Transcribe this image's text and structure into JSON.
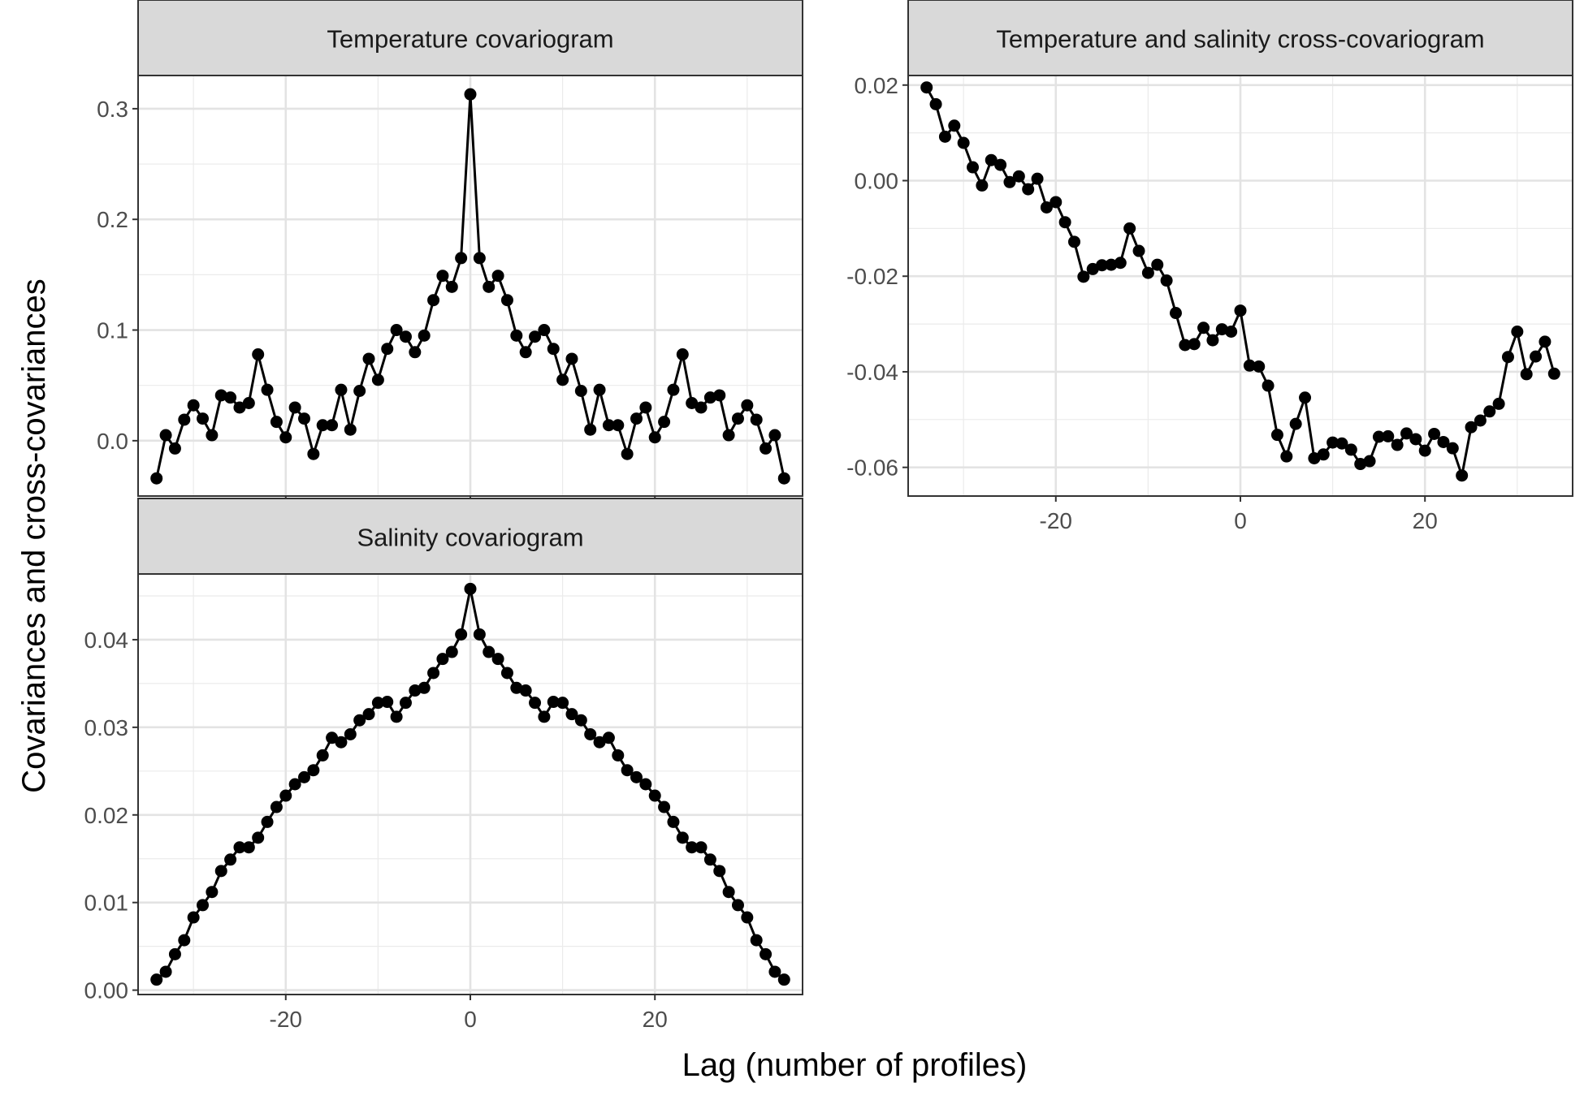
{
  "figure": {
    "xlabel": "Lag (number of profiles)",
    "ylabel": "Covariances and cross-covariances"
  },
  "chart_data": [
    {
      "type": "line",
      "title": "Temperature covariogram",
      "xlabel": "Lag (number of profiles)",
      "ylabel": "Covariances and cross-covariances",
      "xlim": [
        -36,
        36
      ],
      "ylim": [
        -0.05,
        0.33
      ],
      "xticks": [
        -20,
        0,
        20
      ],
      "xtick_labels": [],
      "yticks": [
        0.0,
        0.1,
        0.2,
        0.3
      ],
      "ytick_labels": [
        "0.0",
        "0.1",
        "0.2",
        "0.3"
      ],
      "grid": true,
      "markers": "points",
      "series": [
        {
          "x": [
            -34,
            -33,
            -32,
            -31,
            -30,
            -29,
            -28,
            -27,
            -26,
            -25,
            -24,
            -23,
            -22,
            -21,
            -20,
            -19,
            -18,
            -17,
            -16,
            -15,
            -14,
            -13,
            -12,
            -11,
            -10,
            -9,
            -8,
            -7,
            -6,
            -5,
            -4,
            -3,
            -2,
            -1,
            0,
            1,
            2,
            3,
            4,
            5,
            6,
            7,
            8,
            9,
            10,
            11,
            12,
            13,
            14,
            15,
            16,
            17,
            18,
            19,
            20,
            21,
            22,
            23,
            24,
            25,
            26,
            27,
            28,
            29,
            30,
            31,
            32,
            33,
            34
          ],
          "y": [
            -0.034,
            0.005,
            -0.007,
            0.019,
            0.032,
            0.02,
            0.005,
            0.041,
            0.039,
            0.03,
            0.034,
            0.078,
            0.046,
            0.017,
            0.003,
            0.03,
            0.02,
            -0.012,
            0.014,
            0.014,
            0.046,
            0.01,
            0.045,
            0.074,
            0.055,
            0.083,
            0.1,
            0.094,
            0.08,
            0.095,
            0.127,
            0.149,
            0.139,
            0.165,
            0.313,
            0.165,
            0.139,
            0.149,
            0.127,
            0.095,
            0.08,
            0.094,
            0.1,
            0.083,
            0.055,
            0.074,
            0.045,
            0.01,
            0.046,
            0.014,
            0.014,
            -0.012,
            0.02,
            0.03,
            0.003,
            0.017,
            0.046,
            0.078,
            0.034,
            0.03,
            0.039,
            0.041,
            0.005,
            0.02,
            0.032,
            0.019,
            -0.007,
            0.005,
            -0.034
          ]
        }
      ]
    },
    {
      "type": "line",
      "title": "Temperature and salinity cross-covariogram",
      "xlabel": "Lag (number of profiles)",
      "ylabel": "Covariances and cross-covariances",
      "xlim": [
        -36,
        36
      ],
      "ylim": [
        -0.066,
        0.022
      ],
      "xticks": [
        -20,
        0,
        20
      ],
      "xtick_labels": [
        "-20",
        "0",
        "20"
      ],
      "yticks": [
        -0.06,
        -0.04,
        -0.02,
        0.0,
        0.02
      ],
      "ytick_labels": [
        "-0.06",
        "-0.04",
        "-0.02",
        "0.00",
        "0.02"
      ],
      "grid": true,
      "markers": "points",
      "series": [
        {
          "x": [
            -34,
            -33,
            -32,
            -31,
            -30,
            -29,
            -28,
            -27,
            -26,
            -25,
            -24,
            -23,
            -22,
            -21,
            -20,
            -19,
            -18,
            -17,
            -16,
            -15,
            -14,
            -13,
            -12,
            -11,
            -10,
            -9,
            -8,
            -7,
            -6,
            -5,
            -4,
            -3,
            -2,
            -1,
            0,
            1,
            2,
            3,
            4,
            5,
            6,
            7,
            8,
            9,
            10,
            11,
            12,
            13,
            14,
            15,
            16,
            17,
            18,
            19,
            20,
            21,
            22,
            23,
            24,
            25,
            26,
            27,
            28,
            29,
            30,
            31,
            32,
            33,
            34
          ],
          "y": [
            0.0195,
            0.016,
            0.0092,
            0.0115,
            0.0079,
            0.0028,
            -0.001,
            0.0043,
            0.0033,
            -0.0003,
            0.0009,
            -0.0018,
            0.0004,
            -0.0056,
            -0.0045,
            -0.0087,
            -0.0128,
            -0.0201,
            -0.0185,
            -0.0177,
            -0.0176,
            -0.0172,
            -0.01,
            -0.0147,
            -0.0193,
            -0.0176,
            -0.0209,
            -0.0277,
            -0.0344,
            -0.0342,
            -0.0308,
            -0.0334,
            -0.0311,
            -0.0316,
            -0.0272,
            -0.0387,
            -0.0389,
            -0.0429,
            -0.0532,
            -0.0577,
            -0.0509,
            -0.0454,
            -0.0581,
            -0.0573,
            -0.0548,
            -0.055,
            -0.0563,
            -0.0593,
            -0.0587,
            -0.0536,
            -0.0535,
            -0.0553,
            -0.0529,
            -0.0541,
            -0.0565,
            -0.053,
            -0.0547,
            -0.056,
            -0.0617,
            -0.0516,
            -0.0502,
            -0.0483,
            -0.0467,
            -0.0369,
            -0.0316,
            -0.0405,
            -0.0368,
            -0.0337,
            -0.0404
          ]
        }
      ]
    },
    {
      "type": "line",
      "title": "Salinity covariogram",
      "xlabel": "Lag (number of profiles)",
      "ylabel": "Covariances and cross-covariances",
      "xlim": [
        -36,
        36
      ],
      "ylim": [
        -0.0005,
        0.0475
      ],
      "xticks": [
        -20,
        0,
        20
      ],
      "xtick_labels": [
        "-20",
        "0",
        "20"
      ],
      "yticks": [
        0.0,
        0.01,
        0.02,
        0.03,
        0.04
      ],
      "ytick_labels": [
        "0.00",
        "0.01",
        "0.02",
        "0.03",
        "0.04"
      ],
      "grid": true,
      "markers": "points",
      "series": [
        {
          "x": [
            -34,
            -33,
            -32,
            -31,
            -30,
            -29,
            -28,
            -27,
            -26,
            -25,
            -24,
            -23,
            -22,
            -21,
            -20,
            -19,
            -18,
            -17,
            -16,
            -15,
            -14,
            -13,
            -12,
            -11,
            -10,
            -9,
            -8,
            -7,
            -6,
            -5,
            -4,
            -3,
            -2,
            -1,
            0,
            1,
            2,
            3,
            4,
            5,
            6,
            7,
            8,
            9,
            10,
            11,
            12,
            13,
            14,
            15,
            16,
            17,
            18,
            19,
            20,
            21,
            22,
            23,
            24,
            25,
            26,
            27,
            28,
            29,
            30,
            31,
            32,
            33,
            34
          ],
          "y": [
            0.0012,
            0.0021,
            0.0041,
            0.0057,
            0.0083,
            0.0097,
            0.0112,
            0.0136,
            0.0149,
            0.0163,
            0.0163,
            0.0174,
            0.0192,
            0.0209,
            0.0222,
            0.0235,
            0.0243,
            0.0251,
            0.0268,
            0.0288,
            0.0283,
            0.0292,
            0.0308,
            0.0315,
            0.0328,
            0.0329,
            0.0312,
            0.0328,
            0.0342,
            0.0345,
            0.0362,
            0.0378,
            0.0386,
            0.0406,
            0.0458,
            0.0406,
            0.0386,
            0.0378,
            0.0362,
            0.0345,
            0.0342,
            0.0328,
            0.0312,
            0.0329,
            0.0328,
            0.0315,
            0.0308,
            0.0292,
            0.0283,
            0.0288,
            0.0268,
            0.0251,
            0.0243,
            0.0235,
            0.0222,
            0.0209,
            0.0192,
            0.0174,
            0.0163,
            0.0163,
            0.0149,
            0.0136,
            0.0112,
            0.0097,
            0.0083,
            0.0057,
            0.0041,
            0.0021,
            0.0012
          ]
        }
      ]
    }
  ]
}
